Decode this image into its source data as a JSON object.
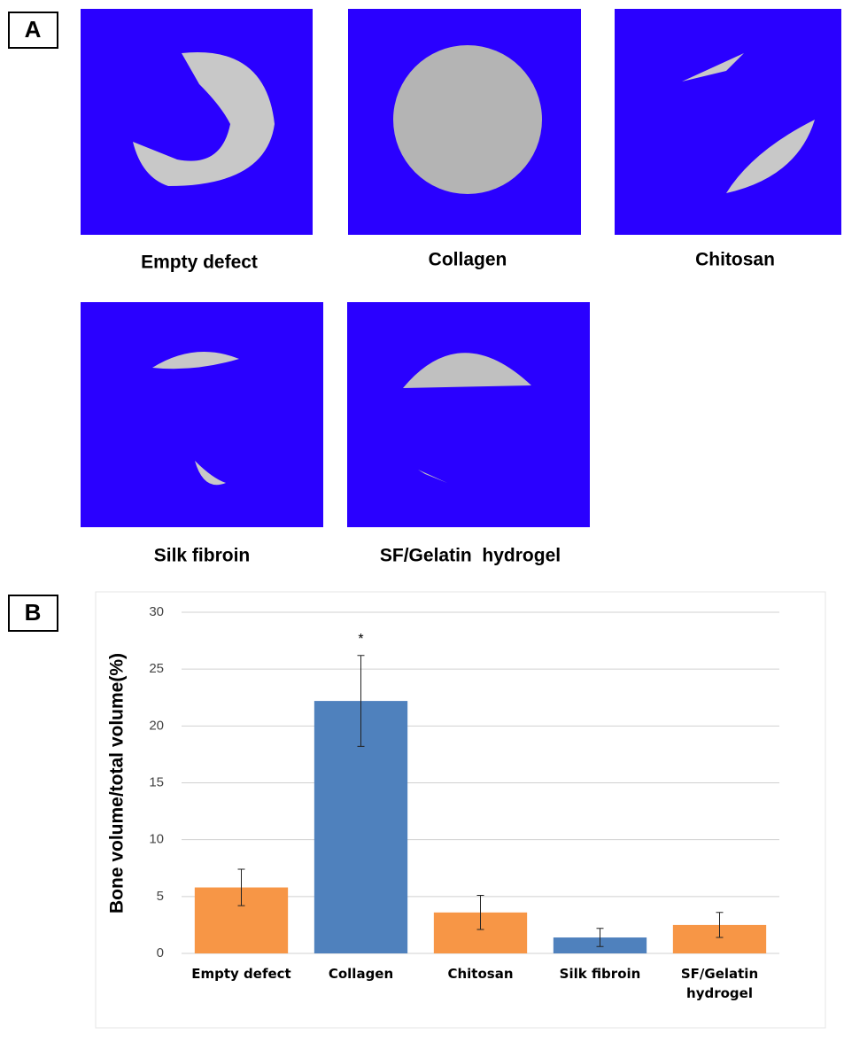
{
  "panel_a": {
    "label": "A",
    "captions": [
      "Empty defect",
      "Collagen",
      "Chitosan",
      "Silk fibroin",
      "SF/Gelatin  hydrogel"
    ]
  },
  "panel_b": {
    "label": "B"
  },
  "chart_data": {
    "type": "bar",
    "y_label": "Bone volume/total volume(%)",
    "categories": [
      "Empty defect",
      "Collagen",
      "Chitosan",
      "Silk fibroin",
      "SF/Gelatin hydrogel"
    ],
    "values": [
      5.8,
      22.2,
      3.6,
      1.4,
      2.5
    ],
    "errors": [
      1.6,
      4.0,
      1.5,
      0.8,
      1.1
    ],
    "colors": [
      "#f79646",
      "#4f81bd",
      "#f79646",
      "#4f81bd",
      "#f79646"
    ],
    "annotation": "*",
    "ylim": [
      0,
      30
    ],
    "yticks": [
      0,
      5,
      10,
      15,
      20,
      25,
      30
    ],
    "grid": true
  }
}
